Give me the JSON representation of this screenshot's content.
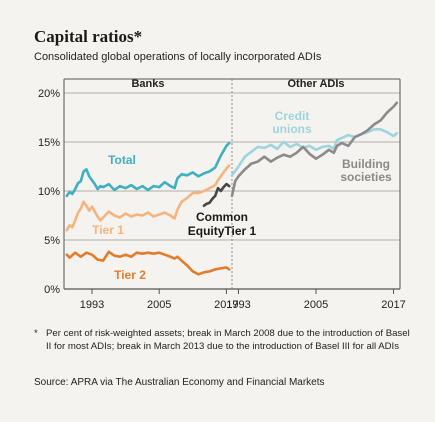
{
  "title": "Capital ratios*",
  "subtitle": "Consolidated global operations of locally incorporated ADIs",
  "footnote_mark": "*",
  "footnote": "Per cent of risk-weighted assets; break in March 2008 due to the introduction of Basel II for most ADIs; break in March 2013 due to the introduction of Basel III for all ADIs",
  "source": "Source: APRA via The Australian Economy and Financial Markets",
  "colors": {
    "total": "#3fb0c0",
    "tier1": "#f5b37d",
    "tier2": "#e27c2b",
    "cet1": "#474747",
    "credit_unions": "#9fd4de",
    "building_societies": "#8a8a8a",
    "grid": "#999999"
  },
  "chart_data": [
    {
      "type": "line",
      "panel_title": "Banks",
      "ylim": [
        0,
        20
      ],
      "y_ticks": [
        "0%",
        "5%",
        "10%",
        "15%",
        "20%"
      ],
      "xlim": [
        1988.0,
        2018.0
      ],
      "x_ticks": [
        "1993",
        "2005",
        "2017"
      ],
      "series": [
        {
          "name": "Total",
          "key": "total",
          "x": [
            1988.5,
            1989,
            1989.5,
            1990,
            1990.5,
            1991,
            1991.5,
            1992,
            1992.5,
            1993,
            1993.5,
            1994,
            1994.5,
            1995,
            1996,
            1997,
            1998,
            1999,
            2000,
            2001,
            2002,
            2003,
            2004,
            2005,
            2006,
            2007,
            2007.75,
            2008.25,
            2009,
            2010,
            2011,
            2012,
            2013,
            2014,
            2015,
            2015.5,
            2016,
            2016.5,
            2017,
            2017.5
          ],
          "y": [
            9.5,
            9.9,
            9.7,
            10.2,
            10.8,
            11.0,
            12.0,
            12.2,
            11.5,
            11.1,
            10.7,
            10.2,
            10.5,
            10.4,
            10.7,
            10.1,
            10.5,
            10.3,
            10.6,
            10.2,
            10.5,
            10.1,
            10.5,
            10.4,
            10.9,
            10.5,
            10.3,
            11.3,
            11.7,
            11.6,
            11.9,
            11.5,
            11.8,
            12.0,
            12.4,
            13.0,
            13.6,
            14.1,
            14.6,
            14.9
          ]
        },
        {
          "name": "Tier 1",
          "key": "tier1",
          "x": [
            1988.5,
            1989,
            1989.5,
            1990,
            1990.5,
            1991,
            1991.5,
            1992,
            1992.5,
            1993,
            1994,
            1994.5,
            1995,
            1996,
            1997,
            1998,
            1999,
            2000,
            2001,
            2002,
            2003,
            2004,
            2005,
            2006,
            2007,
            2007.75,
            2008.25,
            2009,
            2010,
            2011,
            2012,
            2013,
            2014,
            2015,
            2015.5,
            2016,
            2016.5,
            2017,
            2017.5
          ],
          "y": [
            6.0,
            6.5,
            6.3,
            7.0,
            7.8,
            8.2,
            8.9,
            8.5,
            8.0,
            8.4,
            7.4,
            7.0,
            7.3,
            7.9,
            7.5,
            7.3,
            7.7,
            7.4,
            7.6,
            7.5,
            7.8,
            7.4,
            7.6,
            7.8,
            7.5,
            7.2,
            8.1,
            8.9,
            9.3,
            9.8,
            9.8,
            10.0,
            10.3,
            10.6,
            11.1,
            11.5,
            11.9,
            12.3,
            12.6
          ]
        },
        {
          "name": "Tier 2",
          "key": "tier2",
          "x": [
            1988.5,
            1989,
            1990,
            1991,
            1992,
            1993,
            1994,
            1995,
            1996,
            1997,
            1998,
            1999,
            2000,
            2001,
            2002,
            2003,
            2004,
            2005,
            2006,
            2007,
            2007.75,
            2008.25,
            2009,
            2010,
            2011,
            2012,
            2013,
            2014,
            2015,
            2016,
            2017,
            2017.5
          ],
          "y": [
            3.5,
            3.2,
            3.7,
            3.3,
            3.7,
            3.5,
            3.0,
            2.9,
            3.8,
            3.4,
            3.3,
            3.5,
            3.3,
            3.7,
            3.6,
            3.7,
            3.6,
            3.7,
            3.5,
            3.3,
            3.1,
            3.3,
            2.9,
            2.4,
            1.8,
            1.5,
            1.7,
            1.8,
            2.0,
            2.1,
            2.2,
            2.0
          ]
        },
        {
          "name": "Common EquityTier 1",
          "key": "cet1",
          "x": [
            2013,
            2013.5,
            2014,
            2014.5,
            2015,
            2015.5,
            2016,
            2016.5,
            2017,
            2017.5
          ],
          "y": [
            8.5,
            8.7,
            8.8,
            9.2,
            9.5,
            10.3,
            10.0,
            10.4,
            10.7,
            10.5
          ]
        }
      ],
      "labels": [
        {
          "series": "total",
          "text": "Total"
        },
        {
          "series": "tier1",
          "text": "Tier 1"
        },
        {
          "series": "tier2",
          "text": "Tier 2"
        },
        {
          "series": "cet1",
          "text": "Common"
        },
        {
          "series": "cet1",
          "text": "EquityTier 1"
        }
      ]
    },
    {
      "type": "line",
      "panel_title": "Other ADIs",
      "ylim": [
        0,
        20
      ],
      "xlim": [
        1992.0,
        2018.0
      ],
      "x_ticks": [
        "1993",
        "2005",
        "2017"
      ],
      "series": [
        {
          "name": "Credit unions",
          "key": "credit_unions",
          "x": [
            1992,
            1993,
            1994,
            1995,
            1996,
            1997,
            1998,
            1999,
            2000,
            2001,
            2002,
            2003,
            2004,
            2005,
            2006,
            2007,
            2007.75,
            2008.25,
            2009,
            2010,
            2011,
            2012,
            2013,
            2014,
            2015,
            2016,
            2017,
            2017.5
          ],
          "y": [
            11.6,
            12.5,
            13.5,
            14.0,
            14.5,
            14.4,
            14.7,
            14.3,
            15.0,
            14.5,
            14.8,
            14.4,
            14.6,
            14.2,
            14.5,
            14.6,
            14.3,
            15.2,
            15.4,
            15.7,
            15.5,
            15.8,
            16.0,
            16.3,
            16.3,
            16.0,
            15.6,
            15.9
          ]
        },
        {
          "name": "Building societies",
          "key": "building_societies",
          "x": [
            1992,
            1992.5,
            1993,
            1994,
            1995,
            1996,
            1997,
            1998,
            1999,
            2000,
            2001,
            2002,
            2003,
            2004,
            2005,
            2006,
            2007,
            2007.75,
            2008.25,
            2009,
            2010,
            2011,
            2012,
            2013,
            2014,
            2015,
            2016,
            2017,
            2017.5
          ],
          "y": [
            9.5,
            11.0,
            11.5,
            12.2,
            12.8,
            13.0,
            13.5,
            13.0,
            13.4,
            13.7,
            13.5,
            13.9,
            14.5,
            13.8,
            13.3,
            13.7,
            14.2,
            13.9,
            14.6,
            14.9,
            14.6,
            15.5,
            15.8,
            16.2,
            16.8,
            17.2,
            18.0,
            18.6,
            19.0
          ]
        }
      ],
      "labels": [
        {
          "series": "credit_unions",
          "text": "Credit"
        },
        {
          "series": "credit_unions",
          "text": "unions"
        },
        {
          "series": "building_societies",
          "text": "Building"
        },
        {
          "series": "building_societies",
          "text": "societies"
        }
      ]
    }
  ]
}
